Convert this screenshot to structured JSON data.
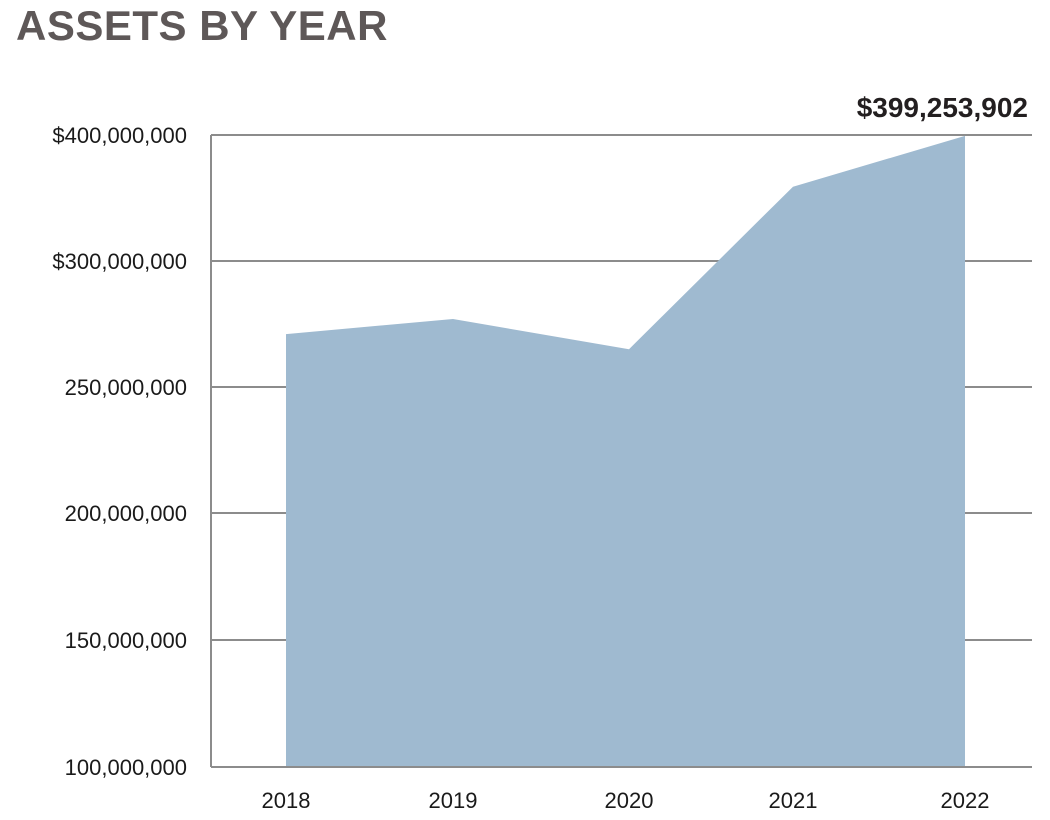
{
  "chart_data": {
    "type": "area",
    "title": "ASSETS BY YEAR",
    "categories": [
      "2018",
      "2019",
      "2020",
      "2021",
      "2022"
    ],
    "series": [
      {
        "values": [
          271000000,
          277000000,
          265000000,
          359000000,
          399253902
        ]
      }
    ],
    "y_ticks": [
      {
        "value": 100000000,
        "label": "100,000,000"
      },
      {
        "value": 150000000,
        "label": "150,000,000"
      },
      {
        "value": 200000000,
        "label": "200,000,000"
      },
      {
        "value": 250000000,
        "label": "250,000,000"
      },
      {
        "value": 300000000,
        "label": "$300,000,000"
      },
      {
        "value": 400000000,
        "label": "$400,000,000"
      }
    ],
    "annotations": [
      {
        "category": "2022",
        "text": "$399,253,902"
      }
    ],
    "grid": true,
    "colors": {
      "fill": "#9fbad0",
      "grid": "#8c8c8c",
      "axis": "#8c8c8c",
      "title": "#5e5858"
    }
  }
}
